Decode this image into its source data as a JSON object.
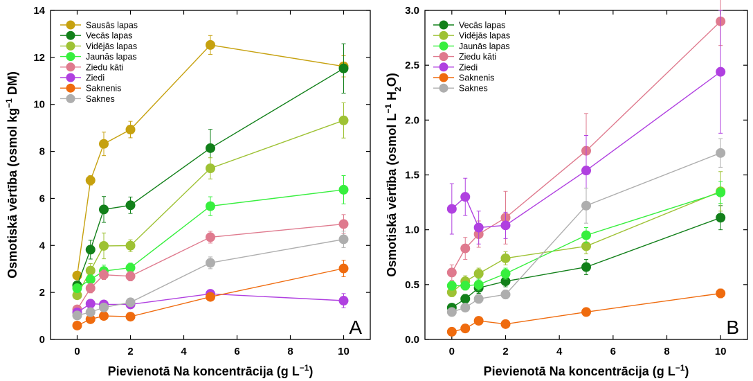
{
  "chart_data": [
    {
      "type": "line",
      "panel_label": "A",
      "xlabel": "Pievienotā Na koncentrācija (g L−1)",
      "ylabel": "Osmotiskā vērtība (osmol kg−1 DM)",
      "xlim": [
        -1,
        11
      ],
      "ylim": [
        0,
        14
      ],
      "xticks": [
        0,
        2,
        4,
        6,
        8,
        10
      ],
      "yticks": [
        0,
        2,
        4,
        6,
        8,
        10,
        12,
        14
      ],
      "legend_position": "top-left",
      "grid": false,
      "x": [
        0,
        0.5,
        1,
        2,
        5,
        10
      ],
      "series": [
        {
          "name": "Sausās lapas",
          "color": "#c6a10f",
          "values": [
            2.72,
            6.77,
            8.32,
            8.93,
            12.53,
            11.62
          ],
          "errors": [
            0.15,
            0.2,
            0.5,
            0.35,
            0.4,
            0.45
          ]
        },
        {
          "name": "Vecās lapas",
          "color": "#12801a",
          "values": [
            2.3,
            3.82,
            5.53,
            5.71,
            8.14,
            11.53
          ],
          "errors": [
            0.15,
            0.4,
            0.55,
            0.35,
            0.8,
            1.05
          ]
        },
        {
          "name": "Vidējās lapas",
          "color": "#9ec234",
          "values": [
            1.88,
            2.93,
            3.98,
            3.99,
            7.28,
            9.32
          ],
          "errors": [
            0.15,
            0.3,
            0.55,
            0.25,
            0.45,
            0.75
          ]
        },
        {
          "name": "Jaunās lapas",
          "color": "#37ef3e",
          "values": [
            2.18,
            2.55,
            2.91,
            3.05,
            5.67,
            6.37
          ],
          "errors": [
            0.15,
            0.2,
            0.25,
            0.2,
            0.4,
            0.6
          ]
        },
        {
          "name": "Ziedu kāti",
          "color": "#df7a8e",
          "values": [
            1.28,
            2.18,
            2.75,
            2.69,
            4.35,
            4.91
          ],
          "errors": [
            0.1,
            0.2,
            0.2,
            0.2,
            0.25,
            0.4
          ]
        },
        {
          "name": "Ziedi",
          "color": "#b040e0",
          "values": [
            1.15,
            1.52,
            1.49,
            1.49,
            1.94,
            1.65
          ],
          "errors": [
            0.1,
            0.15,
            0.15,
            0.15,
            0.15,
            0.3
          ]
        },
        {
          "name": "Saknenis",
          "color": "#ef6b0e",
          "values": [
            0.59,
            0.86,
            1.0,
            0.97,
            1.81,
            3.02
          ],
          "errors": [
            0.1,
            0.1,
            0.1,
            0.1,
            0.15,
            0.35
          ]
        },
        {
          "name": "Saknes",
          "color": "#aeaeae",
          "values": [
            1.02,
            1.16,
            1.36,
            1.58,
            3.26,
            4.26
          ],
          "errors": [
            0.1,
            0.1,
            0.15,
            0.15,
            0.25,
            0.35
          ]
        }
      ]
    },
    {
      "type": "line",
      "panel_label": "B",
      "xlabel": "Pievienotā Na koncentrācija (g L−1)",
      "ylabel": "Osmotiskā vērtība (osmol L−1 H2O)",
      "xlim": [
        -1,
        11
      ],
      "ylim": [
        0,
        3.0
      ],
      "xticks": [
        0,
        2,
        4,
        6,
        8,
        10
      ],
      "yticks": [
        0,
        0.5,
        1.0,
        1.5,
        2.0,
        2.5,
        3.0
      ],
      "legend_position": "top-left",
      "grid": false,
      "x": [
        0,
        0.5,
        1,
        2,
        5,
        10
      ],
      "series": [
        {
          "name": "Vecās lapas",
          "color": "#12801a",
          "values": [
            0.29,
            0.37,
            0.47,
            0.53,
            0.66,
            1.11
          ],
          "errors": [
            0.03,
            0.04,
            0.05,
            0.05,
            0.07,
            0.11
          ]
        },
        {
          "name": "Vidējās lapas",
          "color": "#9ec234",
          "values": [
            0.43,
            0.53,
            0.6,
            0.74,
            0.85,
            1.35
          ],
          "errors": [
            0.04,
            0.05,
            0.05,
            0.06,
            0.07,
            0.18
          ]
        },
        {
          "name": "Jaunās lapas",
          "color": "#37ef3e",
          "values": [
            0.49,
            0.49,
            0.5,
            0.6,
            0.95,
            1.34
          ],
          "errors": [
            0.04,
            0.04,
            0.05,
            0.05,
            0.07,
            0.1
          ]
        },
        {
          "name": "Ziedu kāti",
          "color": "#df7a8e",
          "values": [
            0.61,
            0.83,
            0.96,
            1.11,
            1.72,
            2.9
          ],
          "errors": [
            0.07,
            0.1,
            0.12,
            0.24,
            0.34,
            0.22
          ]
        },
        {
          "name": "Ziedi",
          "color": "#b040e0",
          "values": [
            1.19,
            1.3,
            1.02,
            1.04,
            1.54,
            2.44
          ],
          "errors": [
            0.23,
            0.17,
            0.15,
            0.12,
            0.32,
            0.56
          ]
        },
        {
          "name": "Saknenis",
          "color": "#ef6b0e",
          "values": [
            0.07,
            0.1,
            0.17,
            0.14,
            0.25,
            0.42
          ],
          "errors": [
            0.02,
            0.02,
            0.02,
            0.02,
            0.02,
            0.04
          ]
        },
        {
          "name": "Saknes",
          "color": "#aeaeae",
          "values": [
            0.25,
            0.29,
            0.37,
            0.41,
            1.22,
            1.7
          ],
          "errors": [
            0.03,
            0.03,
            0.04,
            0.04,
            0.16,
            0.13
          ]
        }
      ]
    }
  ]
}
